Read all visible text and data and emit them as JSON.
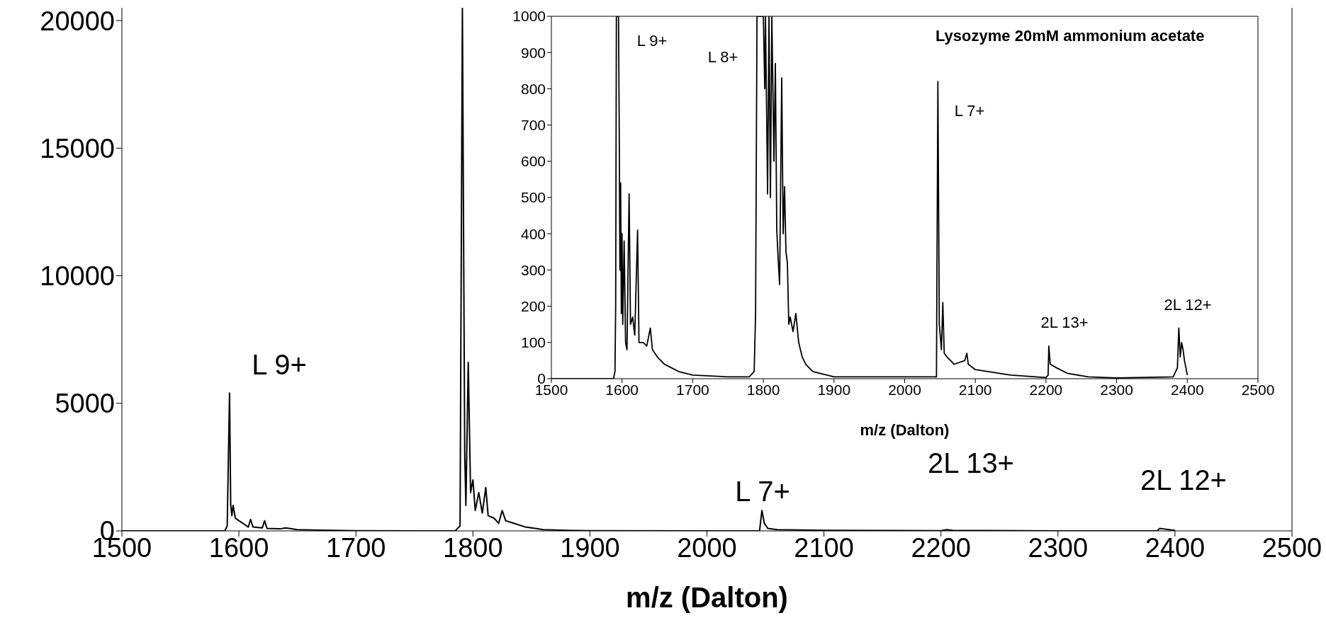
{
  "chart_data": [
    {
      "type": "line",
      "xlabel": "m/z (Dalton)",
      "xlim": [
        1500,
        2500
      ],
      "xticks": [
        1500,
        1600,
        1700,
        1800,
        1900,
        2000,
        2100,
        2200,
        2300,
        2400,
        2500
      ],
      "ylim": [
        0,
        20500
      ],
      "yticks": [
        0,
        5000,
        10000,
        15000,
        20000
      ],
      "series": [
        {
          "color": "#000000",
          "x": [
            1500,
            1588,
            1590,
            1592,
            1593,
            1594,
            1595,
            1597,
            1600,
            1605,
            1608,
            1610,
            1612,
            1620,
            1622,
            1624,
            1635,
            1640,
            1650,
            1670,
            1700,
            1750,
            1785,
            1789,
            1791,
            1793,
            1794,
            1796,
            1798,
            1800,
            1802,
            1805,
            1808,
            1811,
            1813,
            1818,
            1822,
            1825,
            1828,
            1835,
            1845,
            1860,
            1880,
            1900,
            2000,
            2045,
            2047,
            2049,
            2052,
            2060,
            2100,
            2200,
            2205,
            2210,
            2300,
            2385,
            2387,
            2390,
            2395,
            2400
          ],
          "values": [
            0,
            0,
            200,
            5400,
            1000,
            600,
            1000,
            500,
            400,
            250,
            150,
            450,
            150,
            120,
            400,
            100,
            80,
            120,
            50,
            30,
            10,
            0,
            10,
            200,
            20500,
            3000,
            1000,
            6600,
            1500,
            2000,
            800,
            1500,
            700,
            1700,
            600,
            500,
            300,
            800,
            400,
            300,
            150,
            50,
            20,
            10,
            0,
            10,
            800,
            300,
            100,
            50,
            20,
            10,
            50,
            20,
            0,
            10,
            100,
            80,
            50,
            20
          ]
        }
      ],
      "annotations": [
        "L 9+",
        "L 7+",
        "2L 13+",
        "2L 12+"
      ]
    },
    {
      "type": "line",
      "title": "Lysozyme 20mM ammonium acetate",
      "xlabel": "m/z (Dalton)",
      "xlim": [
        1500,
        2500
      ],
      "xticks": [
        1500,
        1600,
        1700,
        1800,
        1900,
        2000,
        2100,
        2200,
        2300,
        2400,
        2500
      ],
      "ylim": [
        0,
        1000
      ],
      "yticks": [
        0,
        100,
        200,
        300,
        400,
        500,
        600,
        700,
        800,
        900,
        1000
      ],
      "series": [
        {
          "color": "#000000",
          "x": [
            1500,
            1588,
            1590,
            1591,
            1592,
            1595,
            1596,
            1597,
            1598,
            1599,
            1600,
            1601,
            1603,
            1605,
            1607,
            1610,
            1612,
            1615,
            1618,
            1622,
            1624,
            1630,
            1635,
            1640,
            1643,
            1650,
            1660,
            1670,
            1680,
            1700,
            1750,
            1780,
            1787,
            1789,
            1791,
            1800,
            1802,
            1803,
            1806,
            1808,
            1810,
            1812,
            1815,
            1817,
            1819,
            1821,
            1823,
            1826,
            1828,
            1830,
            1832,
            1834,
            1836,
            1838,
            1842,
            1846,
            1850,
            1855,
            1860,
            1870,
            1900,
            2000,
            2045,
            2047,
            2049,
            2052,
            2054,
            2056,
            2060,
            2070,
            2085,
            2088,
            2090,
            2100,
            2150,
            2200,
            2203,
            2204,
            2206,
            2215,
            2230,
            2260,
            2300,
            2380,
            2386,
            2388,
            2390,
            2392,
            2394,
            2396,
            2400
          ],
          "values": [
            0,
            0,
            20,
            200,
            1000,
            1000,
            700,
            300,
            540,
            180,
            400,
            150,
            380,
            100,
            80,
            510,
            150,
            170,
            120,
            410,
            100,
            100,
            90,
            140,
            80,
            60,
            40,
            30,
            20,
            10,
            5,
            5,
            20,
            180,
            1000,
            1000,
            800,
            1000,
            510,
            1000,
            500,
            1000,
            600,
            870,
            410,
            330,
            260,
            830,
            400,
            530,
            350,
            320,
            150,
            170,
            130,
            180,
            100,
            60,
            40,
            20,
            5,
            5,
            5,
            820,
            150,
            80,
            210,
            70,
            60,
            40,
            50,
            70,
            40,
            25,
            10,
            3,
            10,
            90,
            40,
            30,
            15,
            5,
            2,
            5,
            30,
            140,
            60,
            100,
            80,
            50,
            10
          ]
        }
      ],
      "annotations": [
        "L 9+",
        "L 8+",
        "L 7+",
        "2L 13+",
        "2L 12+"
      ]
    }
  ]
}
